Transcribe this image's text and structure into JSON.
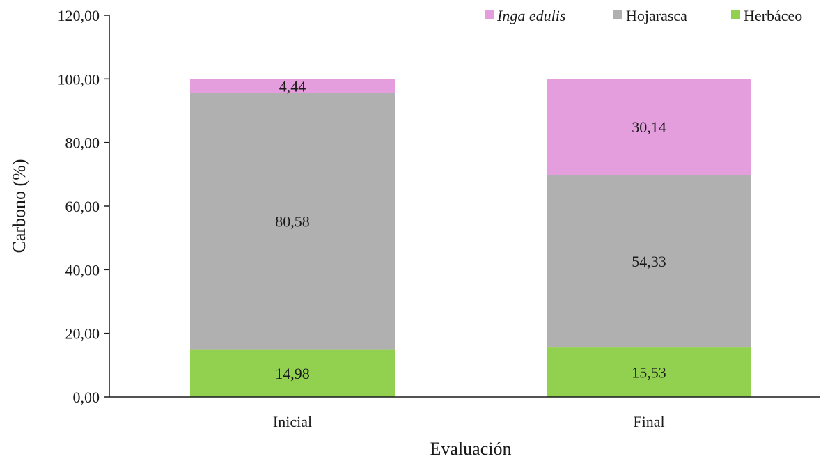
{
  "chart_data": {
    "type": "bar",
    "stacked": true,
    "categories": [
      "Inicial",
      "Final"
    ],
    "series": [
      {
        "name": "Herbáceo",
        "values": [
          14.98,
          15.53
        ],
        "labels": [
          "14,98",
          "15,53"
        ],
        "color": "#92d050"
      },
      {
        "name": "Hojarasca",
        "values": [
          80.58,
          54.33
        ],
        "labels": [
          "80,58",
          "54,33"
        ],
        "color": "#b0b0b0"
      },
      {
        "name": "Inga edulis",
        "values": [
          4.44,
          30.14
        ],
        "labels": [
          "4,44",
          "30,14"
        ],
        "color": "#e49edd"
      }
    ],
    "legend_order": [
      "Inga edulis",
      "Hojarasca",
      "Herbáceo"
    ],
    "legend_position": "top-right",
    "xlabel": "Evaluación",
    "ylabel": "Carbono (%)",
    "ylim": [
      0,
      120
    ],
    "yticks": [
      0,
      20,
      40,
      60,
      80,
      100,
      120
    ],
    "ytick_labels": [
      "0,00",
      "20,00",
      "40,00",
      "60,00",
      "80,00",
      "100,00",
      "120,00"
    ],
    "grid": false
  }
}
